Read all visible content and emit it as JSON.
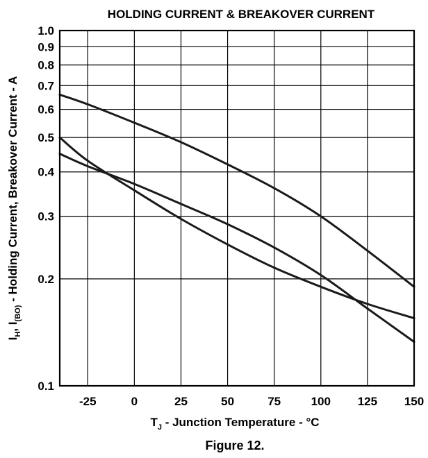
{
  "chart_data": {
    "type": "line",
    "title": "HOLDING CURRENT & BREAKOVER CURRENT",
    "caption": "Figure 12.",
    "xlabel": {
      "main_T": "T",
      "sub_J": "J",
      "rest": " - Junction Temperature - °C"
    },
    "ylabel": {
      "i1": "I",
      "sub_H": "H",
      "comma1": ", I",
      "sub_BO": "(BO)",
      "rest": " - Holding Current, Breakover Current - A"
    },
    "x_scale": "linear",
    "y_scale": "log",
    "xlim": [
      -40,
      150
    ],
    "ylim": [
      0.1,
      1.0
    ],
    "x_ticks": [
      -25,
      0,
      25,
      50,
      75,
      100,
      125,
      150
    ],
    "x_tick_labels": [
      "-25",
      "0",
      "25",
      "50",
      "75",
      "100",
      "125",
      "150"
    ],
    "y_ticks": [
      0.1,
      0.2,
      0.3,
      0.4,
      0.5,
      0.6,
      0.7,
      0.8,
      0.9,
      1.0
    ],
    "y_tick_labels": [
      "0.1",
      "0.2",
      "0.3",
      "0.4",
      "0.5",
      "0.6",
      "0.7",
      "0.8",
      "0.9",
      "1.0"
    ],
    "grid": true,
    "series": [
      {
        "x": [
          -40,
          -25,
          0,
          25,
          50,
          75,
          100,
          125,
          150
        ],
        "values": [
          0.66,
          0.62,
          0.55,
          0.485,
          0.42,
          0.36,
          0.3,
          0.24,
          0.19
        ]
      },
      {
        "x": [
          -40,
          -25,
          0,
          25,
          50,
          75,
          100,
          125,
          150
        ],
        "values": [
          0.45,
          0.415,
          0.37,
          0.325,
          0.285,
          0.245,
          0.205,
          0.165,
          0.133
        ]
      },
      {
        "x": [
          -40,
          -25,
          0,
          25,
          50,
          75,
          100,
          125,
          150
        ],
        "values": [
          0.5,
          0.43,
          0.355,
          0.295,
          0.25,
          0.215,
          0.19,
          0.17,
          0.155
        ]
      }
    ]
  }
}
